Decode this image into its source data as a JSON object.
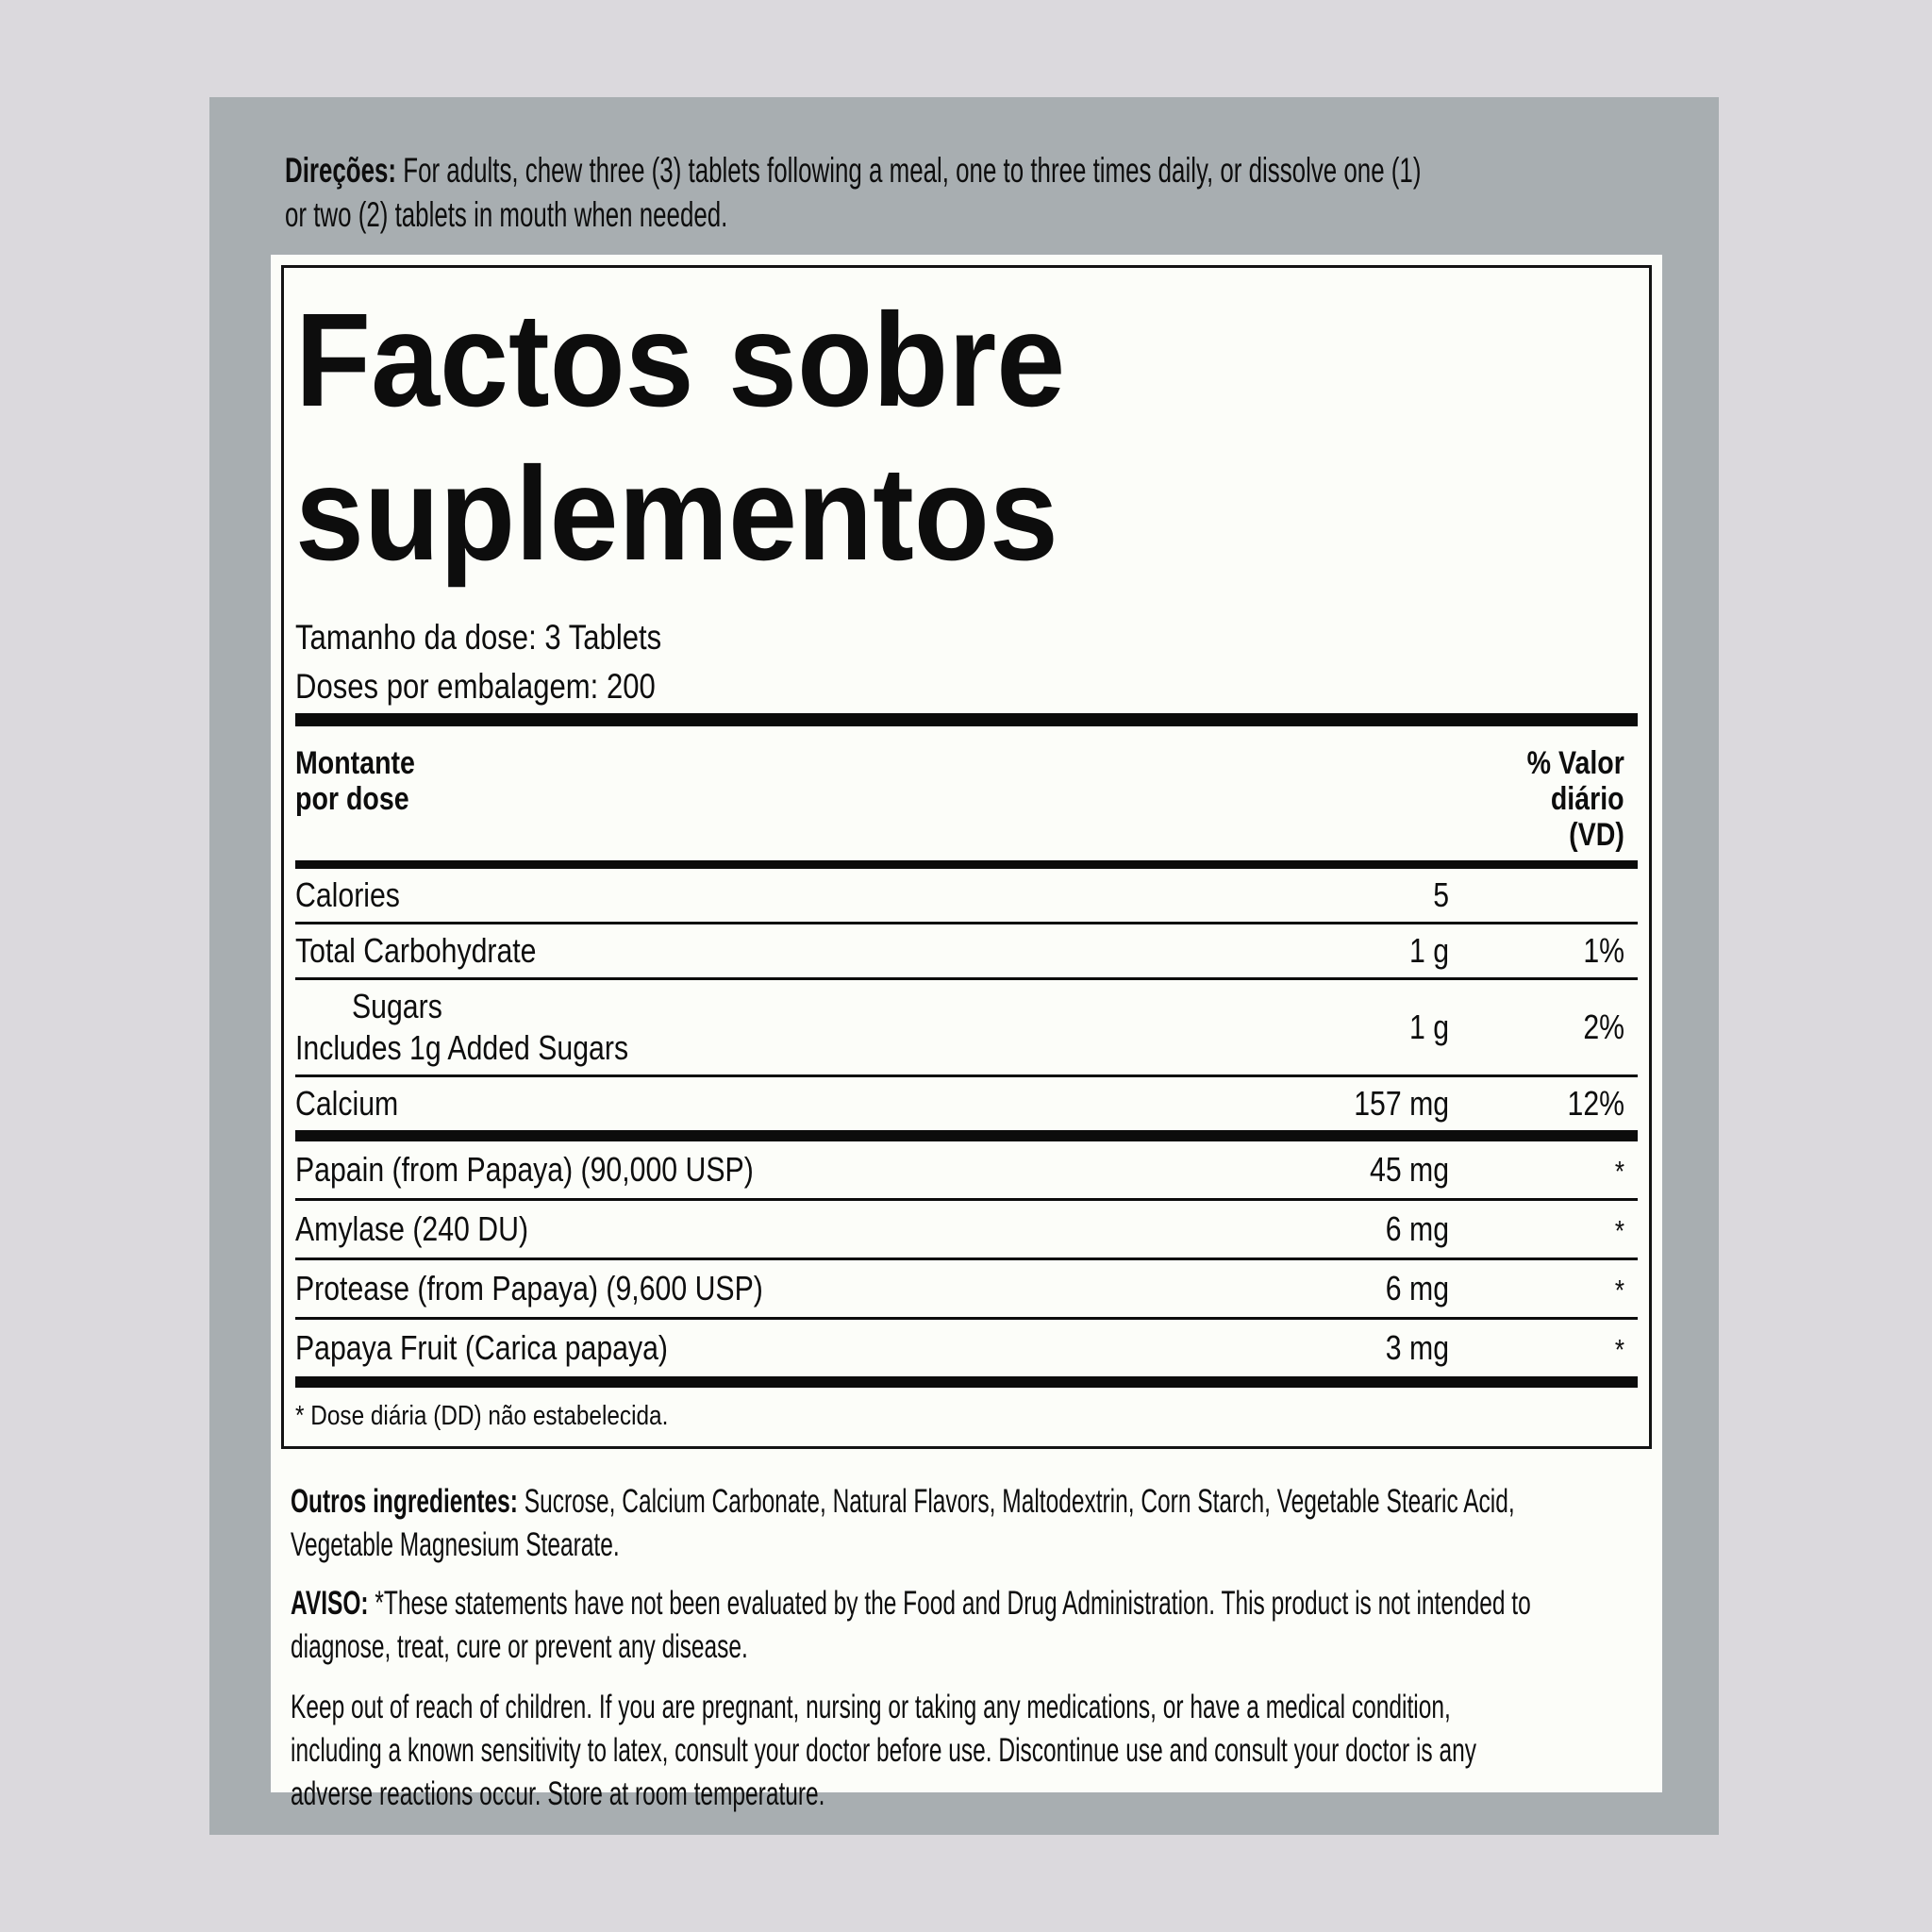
{
  "page": {
    "background_color": "#dbd9dd",
    "panel_color": "#a8aeb1",
    "label_color": "#fcfdf9",
    "text_color": "#0d0d0d"
  },
  "directions": {
    "lead": "Direções:",
    "line1_rest": " For adults, chew three (3) tablets following a meal, one to three times daily, or dissolve one (1)",
    "line2": "or two (2) tablets in mouth when needed."
  },
  "facts": {
    "title_line1": "Factos sobre",
    "title_line2": "suplementos",
    "serving_size": "Tamanho da dose: 3 Tablets",
    "servings_per_container": "Doses por embalagem: 200",
    "header": {
      "amount_line1": "Montante",
      "amount_line2": "por dose",
      "dv_line1": "% Valor",
      "dv_line2": "diário",
      "dv_line3": "(VD)"
    },
    "rows": [
      {
        "label": "Calories",
        "amount": "5",
        "dv": ""
      },
      {
        "label": "Total Carbohydrate",
        "amount": "1 g",
        "dv": "1%"
      },
      {
        "label": "Sugars",
        "sublabel": "Includes 1g Added Sugars",
        "amount": "1 g",
        "dv": "2%"
      },
      {
        "label": "Calcium",
        "amount": "157 mg",
        "dv": "12%"
      },
      {
        "label": "Papain (from Papaya) (90,000 USP)",
        "amount": "45 mg",
        "dv": "*"
      },
      {
        "label": "Amylase (240 DU)",
        "amount": "6 mg",
        "dv": "*"
      },
      {
        "label": "Protease (from Papaya) (9,600 USP)",
        "amount": "6 mg",
        "dv": "*"
      },
      {
        "label": "Papaya Fruit (Carica papaya)",
        "amount": "3 mg",
        "dv": "*"
      }
    ],
    "footnote": "* Dose diária (DD) não estabelecida."
  },
  "other_ingredients": {
    "lead": "Outros ingredientes:",
    "line1_rest": " Sucrose, Calcium Carbonate, Natural Flavors, Maltodextrin, Corn Starch, Vegetable Stearic Acid,",
    "line2": "Vegetable Magnesium Stearate."
  },
  "warning": {
    "lead": "AVISO:",
    "line1_rest": " *These statements have not been evaluated by the Food and Drug Administration. This product is not intended to",
    "line2": "diagnose, treat, cure or prevent any disease."
  },
  "caution": {
    "line1": "Keep out of reach of children. If you are pregnant, nursing or taking any medications, or have a medical condition,",
    "line2": "including a known sensitivity to latex, consult your doctor before use. Discontinue use and consult your doctor is any",
    "line3": "adverse reactions occur. Store at room temperature."
  }
}
